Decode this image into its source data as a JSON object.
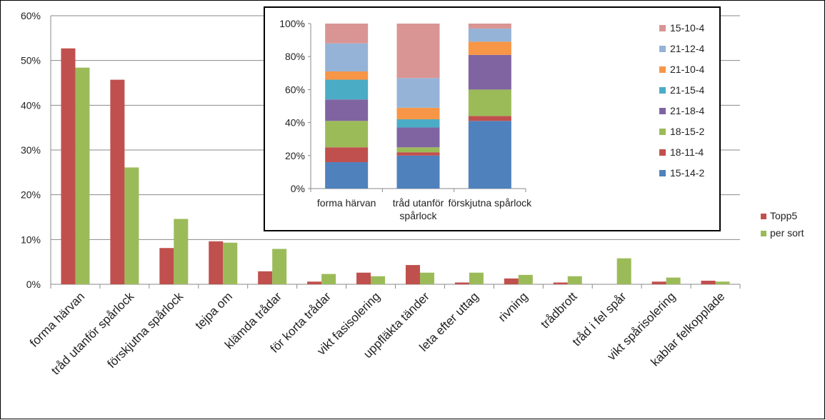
{
  "chart_data": [
    {
      "type": "bar",
      "categories": [
        "forma härvan",
        "tråd utanför spårlock",
        "förskjutna spårlock",
        "tejpa om",
        "klämda trådar",
        "för korta trådar",
        "vikt fasisolering",
        "uppfläkta tänder",
        "leta efter uttag",
        "rivning",
        "trådbrott",
        "tråd i fel spår",
        "vikt spårisolering",
        "kablar felkopplade"
      ],
      "series": [
        {
          "name": "Topp5",
          "color": "#C0504D",
          "values": [
            52.7,
            45.7,
            8.1,
            9.6,
            2.9,
            0.6,
            2.6,
            4.3,
            0.4,
            1.3,
            0.4,
            0.0,
            0.6,
            0.8
          ]
        },
        {
          "name": "per sort",
          "color": "#9BBB59",
          "values": [
            48.4,
            26.1,
            14.6,
            9.3,
            7.9,
            2.3,
            1.8,
            2.6,
            2.6,
            2.1,
            1.8,
            5.8,
            1.5,
            0.6
          ]
        }
      ],
      "ylim": [
        0,
        60
      ],
      "yticks": [
        "0%",
        "10%",
        "20%",
        "30%",
        "40%",
        "50%",
        "60%"
      ],
      "ytick_values": [
        0,
        10,
        20,
        30,
        40,
        50,
        60
      ],
      "grid": true,
      "legend": "right"
    },
    {
      "type": "bar",
      "stacked": true,
      "categories": [
        "forma härvan",
        "tråd utanför spårlock",
        "förskjutna spårlock"
      ],
      "category_lines": [
        [
          "forma härvan"
        ],
        [
          "tråd utanför",
          "spårlock"
        ],
        [
          "förskjutna spårlock"
        ]
      ],
      "series": [
        {
          "name": "15-14-2",
          "color": "#4F81BD",
          "values": [
            16,
            20,
            41
          ]
        },
        {
          "name": "18-11-4",
          "color": "#C0504D",
          "values": [
            9,
            2,
            3
          ]
        },
        {
          "name": "18-15-2",
          "color": "#9BBB59",
          "values": [
            16,
            3,
            16
          ]
        },
        {
          "name": "21-18-4",
          "color": "#8064A2",
          "values": [
            13,
            12,
            21
          ]
        },
        {
          "name": "21-15-4",
          "color": "#4BACC6",
          "values": [
            12,
            5,
            0
          ]
        },
        {
          "name": "21-10-4",
          "color": "#F79646",
          "values": [
            5,
            7,
            8
          ]
        },
        {
          "name": "21-12-4",
          "color": "#95B3D7",
          "values": [
            17,
            18,
            8
          ]
        },
        {
          "name": "15-10-4",
          "color": "#D99594",
          "values": [
            12,
            33,
            3
          ]
        }
      ],
      "ylim": [
        0,
        100
      ],
      "yticks": [
        "0%",
        "20%",
        "40%",
        "60%",
        "80%",
        "100%"
      ],
      "ytick_values": [
        0,
        20,
        40,
        60,
        80,
        100
      ],
      "grid": false,
      "legend": "right"
    }
  ]
}
